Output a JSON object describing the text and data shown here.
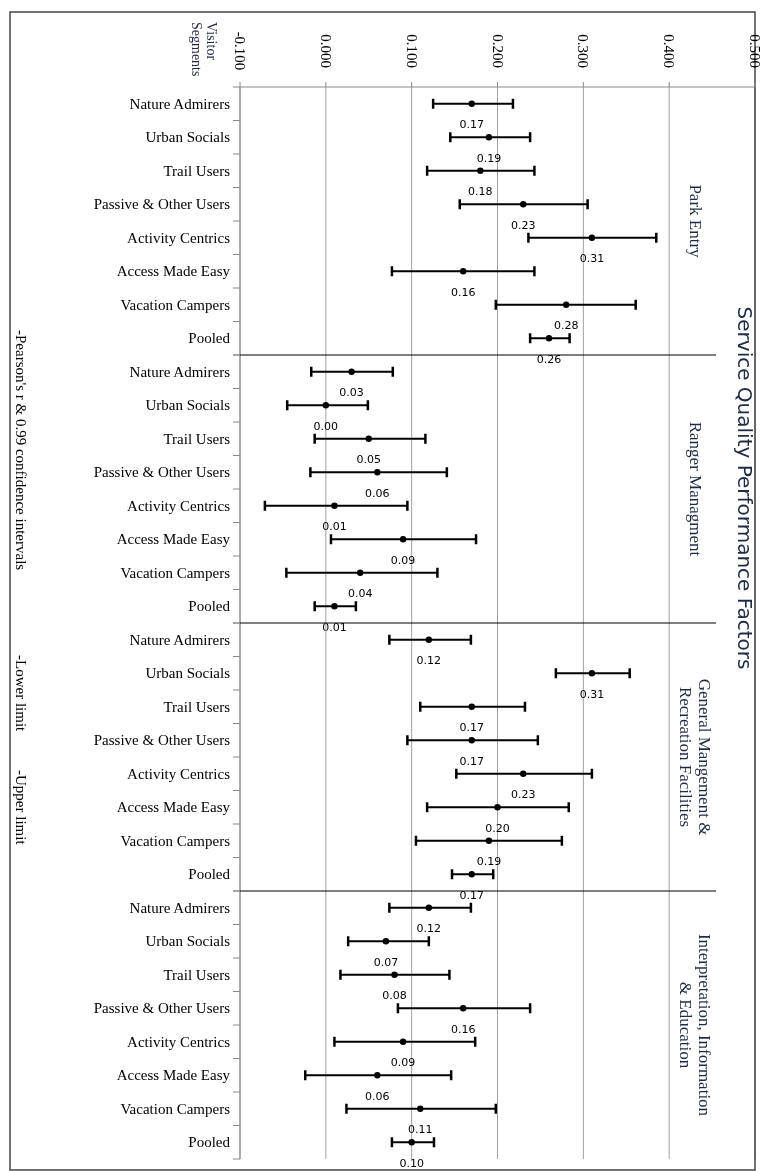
{
  "chart_data": [
    {
      "type": "scatter",
      "orientation": "horizontal",
      "marker": "circle",
      "title": "Park Entry",
      "ylabel": "Visitor Segments",
      "color": "#000000",
      "grid": "x",
      "xlim": [
        -0.1,
        0.5
      ],
      "xticks": [
        {
          "value": -0.1,
          "label": "-0.100"
        },
        {
          "value": 0,
          "label": "0.000"
        },
        {
          "value": 0.1,
          "label": "0.100"
        },
        {
          "value": 0.2,
          "label": "0.200"
        },
        {
          "value": 0.3,
          "label": "0.300"
        },
        {
          "value": 0.4,
          "label": "0.400"
        },
        {
          "value": 0.5,
          "label": "0.500"
        }
      ],
      "categories": [
        "Nature Admirers",
        "Urban Socials",
        "Trail Users",
        "Passive & Other Users",
        "Activity Centrics",
        "Access Made Easy",
        "Vacation Campers",
        "Pooled"
      ],
      "values": [
        0.17,
        0.19,
        0.18,
        0.23,
        0.31,
        0.16,
        0.28,
        0.26
      ],
      "errors": [
        [
          0.125,
          0.218
        ],
        [
          0.145,
          0.238
        ],
        [
          0.118,
          0.243
        ],
        [
          0.156,
          0.305
        ],
        [
          0.236,
          0.385
        ],
        [
          0.077,
          0.243
        ],
        [
          0.198,
          0.361
        ],
        [
          0.238,
          0.284
        ]
      ],
      "value_labels": [
        "0.17",
        "0.19",
        "0.18",
        "0.23",
        "0.31",
        "0.16",
        "0.28",
        "0.26"
      ],
      "annotations": [
        "Service Quality Performance Factors",
        "-Pearson's r & 0.99 confidence intervals",
        "-Lower limit",
        "-Upper limit"
      ]
    },
    {
      "type": "scatter",
      "orientation": "horizontal",
      "marker": "circle",
      "title": "Ranger Managment",
      "color": "#000000",
      "grid": "x",
      "xlim": [
        -0.1,
        0.5
      ],
      "tick_labels": "y",
      "xticks": [
        {
          "value": -0.1,
          "label": null
        },
        {
          "value": 0,
          "label": null
        },
        {
          "value": 0.1,
          "label": null
        },
        {
          "value": 0.2,
          "label": null
        },
        {
          "value": 0.3,
          "label": null
        },
        {
          "value": 0.4,
          "label": null
        },
        {
          "value": 0.5,
          "label": null
        }
      ],
      "categories": [
        "Nature Admirers",
        "Urban Socials",
        "Trail Users",
        "Passive & Other Users",
        "Activity Centrics",
        "Access Made Easy",
        "Vacation Campers",
        "Pooled"
      ],
      "values": [
        0.03,
        0.0,
        0.05,
        0.06,
        0.01,
        0.09,
        0.04,
        0.01
      ],
      "errors": [
        [
          -0.017,
          0.078
        ],
        [
          -0.045,
          0.049
        ],
        [
          -0.013,
          0.116
        ],
        [
          -0.018,
          0.141
        ],
        [
          -0.071,
          0.095
        ],
        [
          0.006,
          0.175
        ],
        [
          -0.046,
          0.13
        ],
        [
          -0.013,
          0.035
        ]
      ],
      "value_labels": [
        "0.03",
        "0.00",
        "0.05",
        "0.06",
        "0.01",
        "0.09",
        "0.04",
        "0.01"
      ]
    },
    {
      "type": "scatter",
      "orientation": "horizontal",
      "marker": "circle",
      "title": "General Mangement &\nRecreation Facilities",
      "color": "#000000",
      "grid": "x",
      "xlim": [
        -0.1,
        0.5
      ],
      "tick_labels": "y",
      "xticks": [
        {
          "value": -0.1,
          "label": null
        },
        {
          "value": 0,
          "label": null
        },
        {
          "value": 0.1,
          "label": null
        },
        {
          "value": 0.2,
          "label": null
        },
        {
          "value": 0.3,
          "label": null
        },
        {
          "value": 0.4,
          "label": null
        },
        {
          "value": 0.5,
          "label": null
        }
      ],
      "categories": [
        "Nature Admirers",
        "Urban Socials",
        "Trail Users",
        "Passive & Other Users",
        "Activity Centrics",
        "Access Made Easy",
        "Vacation Campers",
        "Pooled"
      ],
      "values": [
        0.12,
        0.31,
        0.17,
        0.17,
        0.23,
        0.2,
        0.19,
        0.17
      ],
      "errors": [
        [
          0.074,
          0.169
        ],
        [
          0.268,
          0.354
        ],
        [
          0.11,
          0.232
        ],
        [
          0.095,
          0.247
        ],
        [
          0.152,
          0.31
        ],
        [
          0.118,
          0.283
        ],
        [
          0.105,
          0.275
        ],
        [
          0.147,
          0.195
        ]
      ],
      "value_labels": [
        "0.12",
        "0.31",
        "0.17",
        "0.17",
        "0.23",
        "0.20",
        "0.19",
        "0.17"
      ]
    },
    {
      "type": "scatter",
      "orientation": "horizontal",
      "marker": "circle",
      "title": "Interpretation, Information\n& Education",
      "color": "#000000",
      "grid": "x",
      "xlim": [
        -0.1,
        0.5
      ],
      "tick_labels": "y",
      "xticks": [
        {
          "value": -0.1,
          "label": null
        },
        {
          "value": 0,
          "label": null
        },
        {
          "value": 0.1,
          "label": null
        },
        {
          "value": 0.2,
          "label": null
        },
        {
          "value": 0.3,
          "label": null
        },
        {
          "value": 0.4,
          "label": null
        },
        {
          "value": 0.5,
          "label": null
        }
      ],
      "categories": [
        "Nature Admirers",
        "Urban Socials",
        "Trail Users",
        "Passive & Other Users",
        "Activity Centrics",
        "Access Made Easy",
        "Vacation Campers",
        "Pooled"
      ],
      "values": [
        0.12,
        0.07,
        0.08,
        0.16,
        0.09,
        0.06,
        0.11,
        0.1
      ],
      "errors": [
        [
          0.074,
          0.169
        ],
        [
          0.026,
          0.12
        ],
        [
          0.017,
          0.144
        ],
        [
          0.084,
          0.238
        ],
        [
          0.01,
          0.174
        ],
        [
          -0.024,
          0.146
        ],
        [
          0.024,
          0.198
        ],
        [
          0.077,
          0.126
        ]
      ],
      "value_labels": [
        "0.12",
        "0.07",
        "0.08",
        "0.16",
        "0.09",
        "0.06",
        "0.11",
        "0.10"
      ]
    }
  ]
}
